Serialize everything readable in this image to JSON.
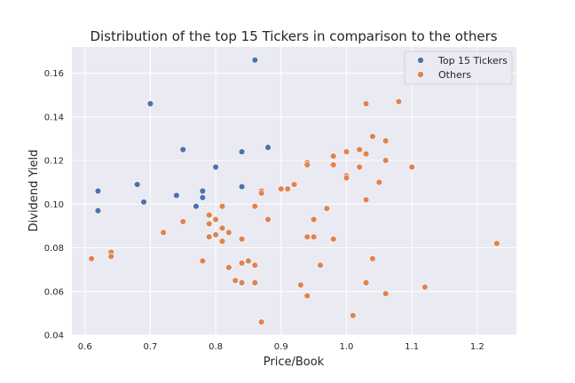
{
  "chart_data": {
    "type": "scatter",
    "title": "Distribution of the top 15 Tickers in comparison to the others",
    "xlabel": "Price/Book",
    "ylabel": "Dividend Yield",
    "xlim": [
      0.58,
      1.26
    ],
    "ylim": [
      0.04,
      0.172
    ],
    "xticks": [
      "0.6",
      "0.7",
      "0.8",
      "0.9",
      "1.0",
      "1.1",
      "1.2"
    ],
    "yticks": [
      "0.04",
      "0.06",
      "0.08",
      "0.10",
      "0.12",
      "0.14",
      "0.16"
    ],
    "grid": true,
    "background": "#eaeaf2",
    "legend_position": "upper-right",
    "series": [
      {
        "name": "Top 15 Tickers",
        "color": "#4c72b0",
        "points": [
          [
            0.62,
            0.106
          ],
          [
            0.62,
            0.097
          ],
          [
            0.68,
            0.109
          ],
          [
            0.69,
            0.101
          ],
          [
            0.7,
            0.146
          ],
          [
            0.74,
            0.104
          ],
          [
            0.75,
            0.125
          ],
          [
            0.77,
            0.099
          ],
          [
            0.78,
            0.103
          ],
          [
            0.78,
            0.106
          ],
          [
            0.8,
            0.117
          ],
          [
            0.84,
            0.124
          ],
          [
            0.84,
            0.108
          ],
          [
            0.86,
            0.166
          ],
          [
            0.88,
            0.126
          ]
        ]
      },
      {
        "name": "Others",
        "color": "#dd8452",
        "points": [
          [
            0.61,
            0.075
          ],
          [
            0.64,
            0.078
          ],
          [
            0.64,
            0.076
          ],
          [
            0.72,
            0.087
          ],
          [
            0.75,
            0.092
          ],
          [
            0.78,
            0.074
          ],
          [
            0.79,
            0.095
          ],
          [
            0.79,
            0.091
          ],
          [
            0.79,
            0.085
          ],
          [
            0.8,
            0.093
          ],
          [
            0.8,
            0.086
          ],
          [
            0.81,
            0.099
          ],
          [
            0.81,
            0.089
          ],
          [
            0.81,
            0.083
          ],
          [
            0.82,
            0.087
          ],
          [
            0.82,
            0.071
          ],
          [
            0.83,
            0.065
          ],
          [
            0.84,
            0.084
          ],
          [
            0.84,
            0.073
          ],
          [
            0.84,
            0.064
          ],
          [
            0.85,
            0.074
          ],
          [
            0.86,
            0.099
          ],
          [
            0.86,
            0.072
          ],
          [
            0.86,
            0.064
          ],
          [
            0.87,
            0.106
          ],
          [
            0.87,
            0.105
          ],
          [
            0.87,
            0.046
          ],
          [
            0.88,
            0.093
          ],
          [
            0.9,
            0.107
          ],
          [
            0.91,
            0.107
          ],
          [
            0.92,
            0.109
          ],
          [
            0.93,
            0.063
          ],
          [
            0.94,
            0.119
          ],
          [
            0.94,
            0.118
          ],
          [
            0.94,
            0.085
          ],
          [
            0.94,
            0.058
          ],
          [
            0.95,
            0.093
          ],
          [
            0.95,
            0.085
          ],
          [
            0.96,
            0.072
          ],
          [
            0.97,
            0.098
          ],
          [
            0.98,
            0.122
          ],
          [
            0.98,
            0.118
          ],
          [
            0.98,
            0.084
          ],
          [
            1.0,
            0.124
          ],
          [
            1.0,
            0.113
          ],
          [
            1.0,
            0.112
          ],
          [
            1.01,
            0.049
          ],
          [
            1.02,
            0.125
          ],
          [
            1.02,
            0.117
          ],
          [
            1.03,
            0.146
          ],
          [
            1.03,
            0.123
          ],
          [
            1.03,
            0.102
          ],
          [
            1.03,
            0.064
          ],
          [
            1.04,
            0.131
          ],
          [
            1.04,
            0.075
          ],
          [
            1.05,
            0.11
          ],
          [
            1.06,
            0.129
          ],
          [
            1.06,
            0.12
          ],
          [
            1.06,
            0.059
          ],
          [
            1.08,
            0.147
          ],
          [
            1.1,
            0.117
          ],
          [
            1.12,
            0.062
          ],
          [
            1.23,
            0.082
          ]
        ]
      }
    ]
  }
}
